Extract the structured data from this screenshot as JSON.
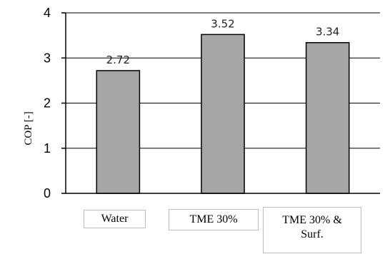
{
  "chart_data": {
    "type": "bar",
    "categories": [
      "Water",
      "TME 30%",
      "TME 30% & Surf."
    ],
    "values": [
      2.72,
      3.52,
      3.34
    ],
    "data_labels": [
      "2.72",
      "3.52",
      "3.34"
    ],
    "title": "",
    "xlabel": "",
    "ylabel": "COP [-]",
    "ylim": [
      0,
      4
    ],
    "yticks": [
      "0",
      "1",
      "2",
      "3",
      "4"
    ],
    "grid": "horizontal",
    "bar_color": "#a6a6a6",
    "bar_edge_color": "#000000"
  }
}
